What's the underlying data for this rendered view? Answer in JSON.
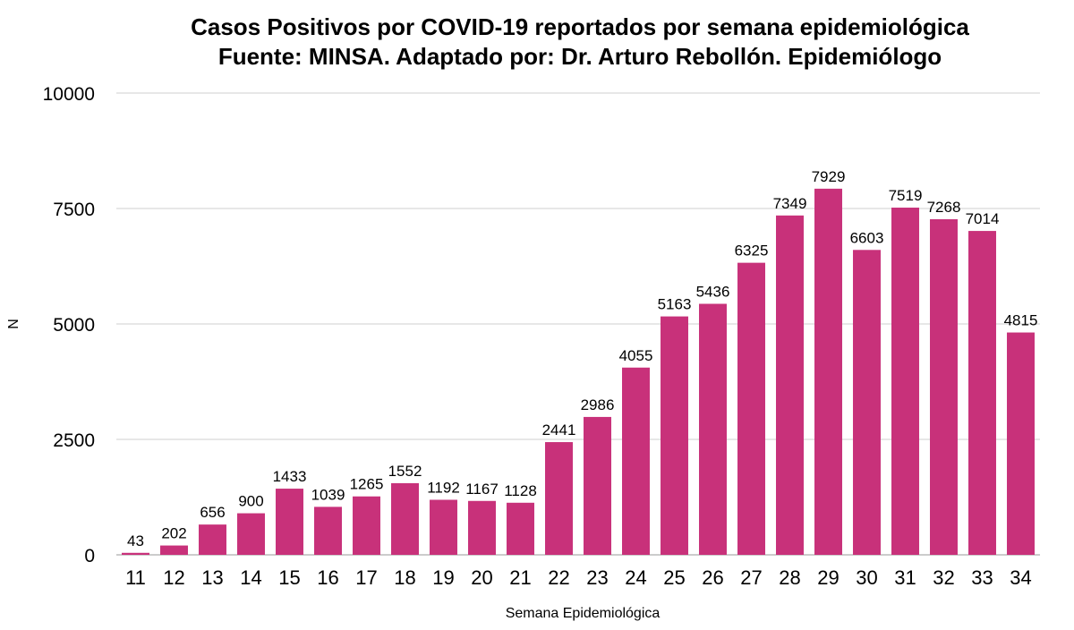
{
  "chart_data": {
    "type": "bar",
    "title_lines": [
      "Casos Positivos por COVID-19 reportados por semana epidemiológica",
      "Fuente: MINSA. Adaptado por: Dr. Arturo Rebollón. Epidemiólogo"
    ],
    "xlabel": "Semana Epidemiológica",
    "ylabel": "N",
    "ylim": [
      0,
      10000
    ],
    "yticks": [
      0,
      2500,
      5000,
      7500,
      10000
    ],
    "grid": true,
    "bar_color": "#C8317A",
    "categories": [
      "11",
      "12",
      "13",
      "14",
      "15",
      "16",
      "17",
      "18",
      "19",
      "20",
      "21",
      "22",
      "23",
      "24",
      "25",
      "26",
      "27",
      "28",
      "29",
      "30",
      "31",
      "32",
      "33",
      "34"
    ],
    "values": [
      43,
      202,
      656,
      900,
      1433,
      1039,
      1265,
      1552,
      1192,
      1167,
      1128,
      2441,
      2986,
      4055,
      5163,
      5436,
      6325,
      7349,
      7929,
      6603,
      7519,
      7268,
      7014,
      4815
    ]
  }
}
